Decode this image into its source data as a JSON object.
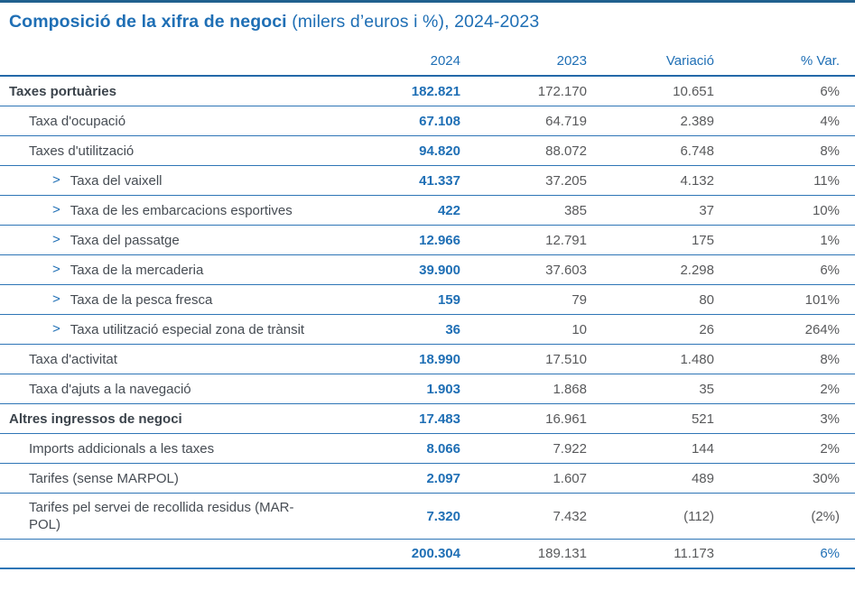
{
  "page": {
    "title_bold": "Composició de la xifra de negoci",
    "title_rest": " (milers d’euros i %), 2024-2023"
  },
  "colors": {
    "accent_blue": "#1f6fb5",
    "row_border_blue": "#2e75b6",
    "top_rule_blue": "#20618f",
    "label_dark": "#3c444c",
    "label_gray": "#464c53",
    "value_gray": "#58595b"
  },
  "icons": {
    "chevron": ">"
  },
  "table": {
    "columns": [
      "2024",
      "2023",
      "Variació",
      "% Var."
    ],
    "rows": [
      {
        "type": "section",
        "label": "Taxes portuàries",
        "v2024": "182.821",
        "v2023": "172.170",
        "variacio": "10.651",
        "pct": "6%"
      },
      {
        "type": "sub",
        "label": "Taxa d'ocupació",
        "v2024": "67.108",
        "v2023": "64.719",
        "variacio": "2.389",
        "pct": "4%"
      },
      {
        "type": "sub",
        "label": "Taxes d'utilització",
        "v2024": "94.820",
        "v2023": "88.072",
        "variacio": "6.748",
        "pct": "8%"
      },
      {
        "type": "leaf",
        "label": "Taxa del vaixell",
        "v2024": "41.337",
        "v2023": "37.205",
        "variacio": "4.132",
        "pct": "11%"
      },
      {
        "type": "leaf",
        "label": "Taxa de les embarcacions esportives",
        "v2024": "422",
        "v2023": "385",
        "variacio": "37",
        "pct": "10%"
      },
      {
        "type": "leaf",
        "label": "Taxa del passatge",
        "v2024": "12.966",
        "v2023": "12.791",
        "variacio": "175",
        "pct": "1%"
      },
      {
        "type": "leaf",
        "label": "Taxa de la mercaderia",
        "v2024": "39.900",
        "v2023": "37.603",
        "variacio": "2.298",
        "pct": "6%"
      },
      {
        "type": "leaf",
        "label": "Taxa de la pesca fresca",
        "v2024": "159",
        "v2023": "79",
        "variacio": "80",
        "pct": "101%"
      },
      {
        "type": "leaf",
        "label": "Taxa utilització especial zona de trànsit",
        "v2024": "36",
        "v2023": "10",
        "variacio": "26",
        "pct": "264%"
      },
      {
        "type": "sub",
        "label": "Taxa d'activitat",
        "v2024": "18.990",
        "v2023": "17.510",
        "variacio": "1.480",
        "pct": "8%"
      },
      {
        "type": "sub",
        "label": "Taxa d'ajuts a la navegació",
        "v2024": "1.903",
        "v2023": "1.868",
        "variacio": "35",
        "pct": "2%"
      },
      {
        "type": "section",
        "label": "Altres ingressos de negoci",
        "v2024": "17.483",
        "v2023": "16.961",
        "variacio": "521",
        "pct": "3%"
      },
      {
        "type": "sub",
        "label": "Imports addicionals a les taxes",
        "v2024": "8.066",
        "v2023": "7.922",
        "variacio": "144",
        "pct": "2%"
      },
      {
        "type": "sub",
        "label": "Tarifes (sense MARPOL)",
        "v2024": "2.097",
        "v2023": "1.607",
        "variacio": "489",
        "pct": "30%"
      },
      {
        "type": "sub",
        "wrap": true,
        "label": "Tarifes pel servei de recollida residus (MAR-\nPOL)",
        "v2024": "7.320",
        "v2023": "7.432",
        "variacio": "(112)",
        "pct": "(2%)"
      },
      {
        "type": "total",
        "label": "",
        "v2024": "200.304",
        "v2023": "189.131",
        "variacio": "11.173",
        "pct": "6%"
      }
    ]
  }
}
